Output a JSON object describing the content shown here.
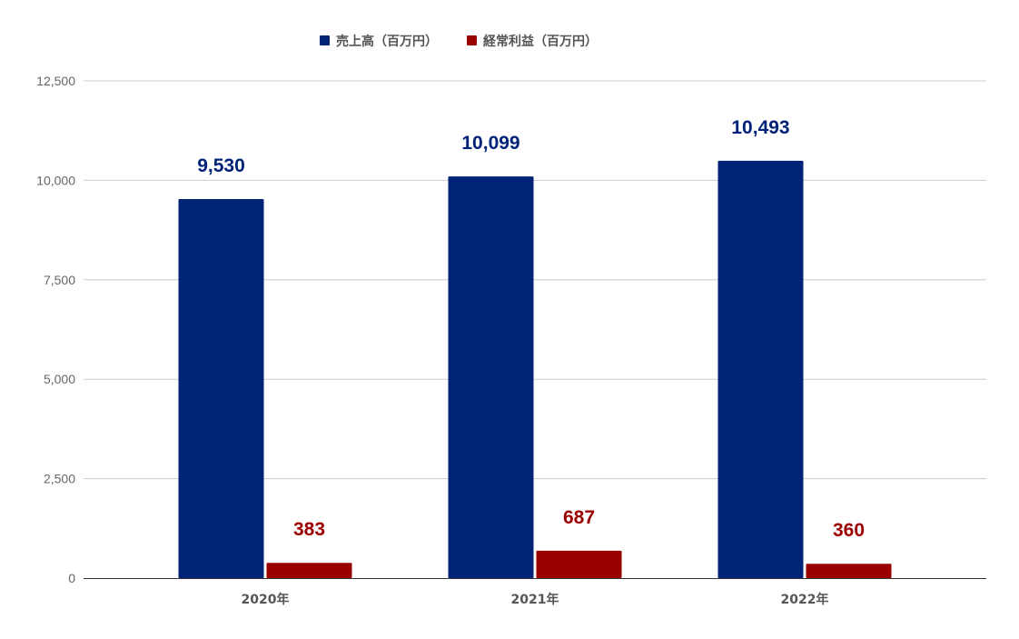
{
  "chart_data": {
    "type": "bar",
    "categories": [
      "2020年",
      "2021年",
      "2022年"
    ],
    "series": [
      {
        "name": "売上高（百万円）",
        "values": [
          9530,
          10099,
          10493
        ],
        "labels": [
          "9,530",
          "10,099",
          "10,493"
        ],
        "color": "#002277"
      },
      {
        "name": "経常利益（百万円）",
        "values": [
          383,
          687,
          360
        ],
        "labels": [
          "383",
          "687",
          "360"
        ],
        "color": "#9b0000"
      }
    ],
    "y_ticks": [
      {
        "value": 0,
        "label": "0"
      },
      {
        "value": 2500,
        "label": "2,500"
      },
      {
        "value": 5000,
        "label": "5,000"
      },
      {
        "value": 7500,
        "label": "7,500"
      },
      {
        "value": 10000,
        "label": "10,000"
      },
      {
        "value": 12500,
        "label": "12,500"
      }
    ],
    "ylim": [
      0,
      12500
    ],
    "title": "",
    "xlabel": "",
    "ylabel": "",
    "grid": true,
    "legend_position": "top-center",
    "gridline_color": "#cccccc",
    "axis_line_color": "#333333"
  }
}
